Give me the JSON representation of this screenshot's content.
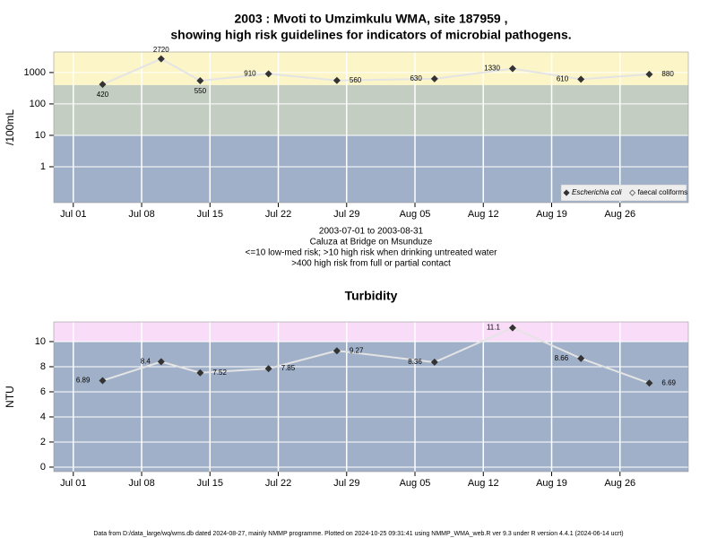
{
  "chart_data": [
    {
      "type": "line",
      "log_y": true,
      "title": [
        "2003 : Mvoti to Umzimkulu WMA, site 187959 ,",
        "showing high risk guidelines for indicators of microbial pathogens."
      ],
      "subtitle": [
        "2003-07-01 to 2003-08-31",
        "Caluza at Bridge on Msunduze",
        "<=10 low-med risk; >10 high risk when drinking untreated water",
        ">400 high risk from full or partial contact"
      ],
      "y_label": "/100mL",
      "x": [
        "2003-07-04",
        "2003-07-10",
        "2003-07-14",
        "2003-07-21",
        "2003-07-28",
        "2003-08-07",
        "2003-08-15",
        "2003-08-22",
        "2003-08-29"
      ],
      "series": [
        {
          "name": "Escherichia coli",
          "color": "#333333",
          "values": [
            420,
            2720,
            550,
            910,
            560,
            630,
            1330,
            610,
            880
          ]
        },
        {
          "name": "faecal coliforms",
          "color": "#555555",
          "values": [
            null,
            null,
            null,
            null,
            null,
            null,
            null,
            null,
            null
          ]
        }
      ],
      "line_color": "#e4e4e4",
      "thresholds": [
        10,
        400
      ],
      "band_colors": [
        "#a0b0c9",
        "#c4cdc2",
        "#fcf5c8"
      ],
      "xlim": [
        "2003-06-29",
        "2003-09-02"
      ],
      "xticks": [
        {
          "value": "2003-07-01",
          "label": "Jul 01"
        },
        {
          "value": "2003-07-08",
          "label": "Jul 08"
        },
        {
          "value": "2003-07-15",
          "label": "Jul 15"
        },
        {
          "value": "2003-07-22",
          "label": "Jul 22"
        },
        {
          "value": "2003-07-29",
          "label": "Jul 29"
        },
        {
          "value": "2003-08-05",
          "label": "Aug 05"
        },
        {
          "value": "2003-08-12",
          "label": "Aug 12"
        },
        {
          "value": "2003-08-19",
          "label": "Aug 19"
        },
        {
          "value": "2003-08-26",
          "label": "Aug 26"
        }
      ],
      "ylim": [
        0.072,
        4500
      ],
      "yticks": [
        1,
        10,
        100,
        1000
      ],
      "grid": true,
      "legend": "bottom-right"
    },
    {
      "type": "line",
      "log_y": false,
      "title": [
        "Turbidity"
      ],
      "y_label": "NTU",
      "x": [
        "2003-07-04",
        "2003-07-10",
        "2003-07-14",
        "2003-07-21",
        "2003-07-28",
        "2003-08-07",
        "2003-08-15",
        "2003-08-22",
        "2003-08-29"
      ],
      "series": [
        {
          "color": "#333333",
          "values": [
            6.89,
            8.4,
            7.52,
            7.85,
            9.27,
            8.36,
            11.1,
            8.66,
            6.69
          ]
        }
      ],
      "line_color": "#e4e4e4",
      "thresholds": [
        10
      ],
      "band_colors": [
        "#a0b0c9",
        "#f9dcf8"
      ],
      "xlim": [
        "2003-06-29",
        "2003-09-02"
      ],
      "xticks": [
        {
          "value": "2003-07-01",
          "label": "Jul 01"
        },
        {
          "value": "2003-07-08",
          "label": "Jul 08"
        },
        {
          "value": "2003-07-15",
          "label": "Jul 15"
        },
        {
          "value": "2003-07-22",
          "label": "Jul 22"
        },
        {
          "value": "2003-07-29",
          "label": "Jul 29"
        },
        {
          "value": "2003-08-05",
          "label": "Aug 05"
        },
        {
          "value": "2003-08-12",
          "label": "Aug 12"
        },
        {
          "value": "2003-08-19",
          "label": "Aug 19"
        },
        {
          "value": "2003-08-26",
          "label": "Aug 26"
        }
      ],
      "ylim": [
        -0.36,
        11.57
      ],
      "yticks": [
        0,
        2,
        4,
        6,
        8,
        10
      ],
      "grid": true
    }
  ],
  "footer": "Data from D:/data_large/wq/wms.db dated 2024-08-27, mainly NMMP programme. Plotted on 2024-10-25 09:31:41 using NMMP_WMA_web.R ver 9.3 under R version 4.4.1 (2024-06-14 ucrt)"
}
